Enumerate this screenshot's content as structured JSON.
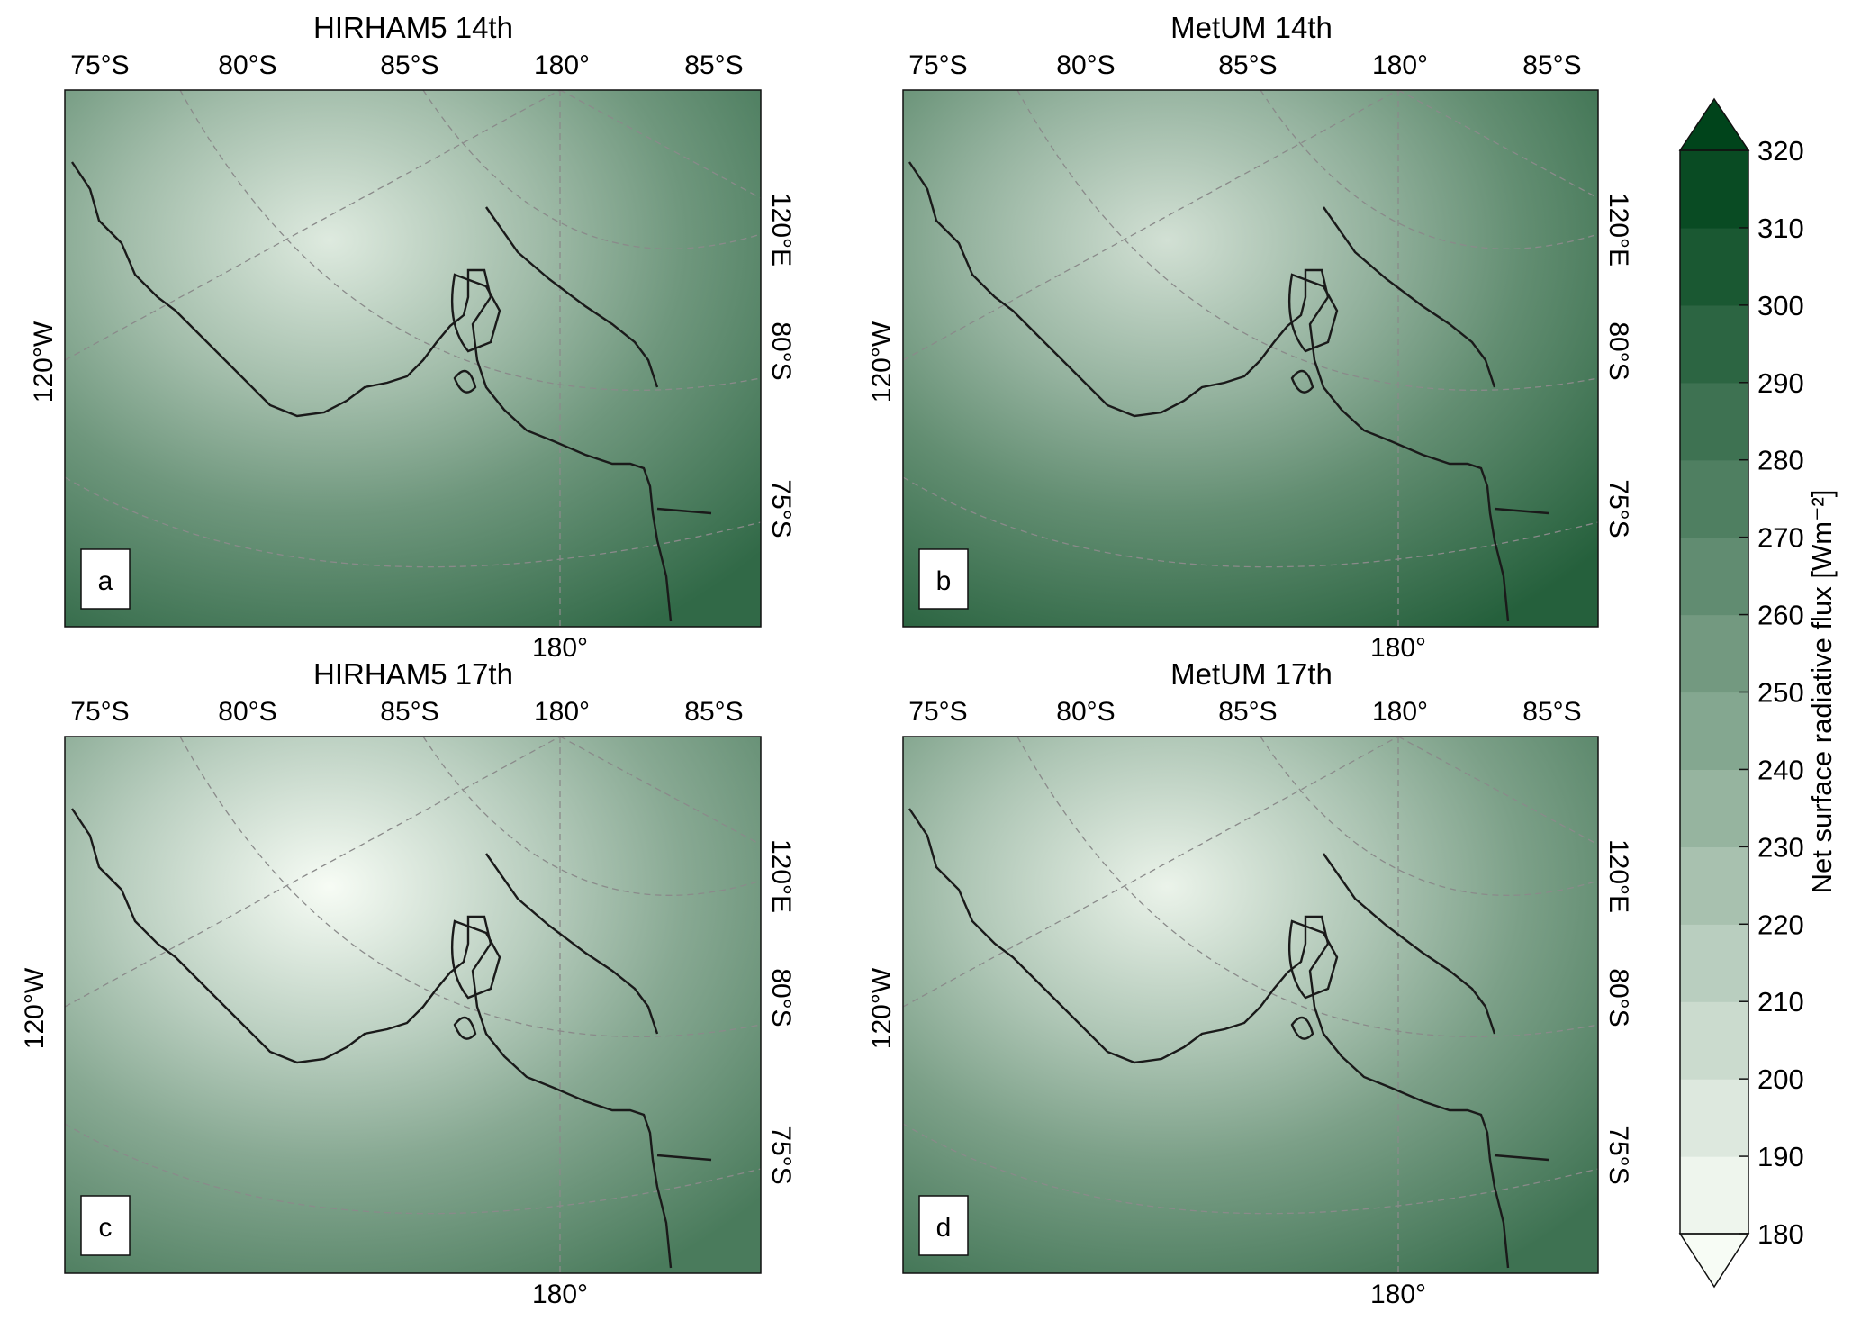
{
  "panels": [
    {
      "id": "a",
      "title": "HIRHAM5 14th",
      "letter": "a",
      "top_lat_labels": [
        "75°S",
        "80°S",
        "85°S",
        "180°",
        "85°S"
      ],
      "left_label": "120°W",
      "right_labels": [
        "120°E",
        "80°S",
        "75°S"
      ],
      "bottom_label": "180°",
      "surface_level": 0.55
    },
    {
      "id": "b",
      "title": "MetUM 14th",
      "letter": "b",
      "top_lat_labels": [
        "75°S",
        "80°S",
        "85°S",
        "180°",
        "85°S"
      ],
      "left_label": "120°W",
      "right_labels": [
        "120°E",
        "80°S",
        "75°S"
      ],
      "bottom_label": "180°",
      "surface_level": 0.6
    },
    {
      "id": "c",
      "title": "HIRHAM5 17th",
      "letter": "c",
      "top_lat_labels": [
        "75°S",
        "80°S",
        "85°S",
        "180°",
        "85°S"
      ],
      "left_label": "120°W",
      "right_labels": [
        "120°E",
        "80°S",
        "75°S"
      ],
      "bottom_label": "180°",
      "surface_level": 0.45
    },
    {
      "id": "d",
      "title": "MetUM 17th",
      "letter": "d",
      "top_lat_labels": [
        "75°S",
        "80°S",
        "85°S",
        "180°",
        "85°S"
      ],
      "left_label": "120°W",
      "right_labels": [
        "120°E",
        "80°S",
        "75°S"
      ],
      "bottom_label": "180°",
      "surface_level": 0.5
    }
  ],
  "colorbar": {
    "label": "Net surface radiative flux [Wm⁻²]",
    "min": 180,
    "max": 320,
    "step": 10,
    "ticks": [
      "320",
      "310",
      "300",
      "290",
      "280",
      "270",
      "260",
      "250",
      "240",
      "230",
      "220",
      "210",
      "200",
      "190",
      "180"
    ],
    "color_low": "#f7fcf5",
    "color_high": "#00441b",
    "extend": "both"
  },
  "colors": {
    "coastline": "#1a1a1a",
    "graticule": "#8a8a8a"
  }
}
